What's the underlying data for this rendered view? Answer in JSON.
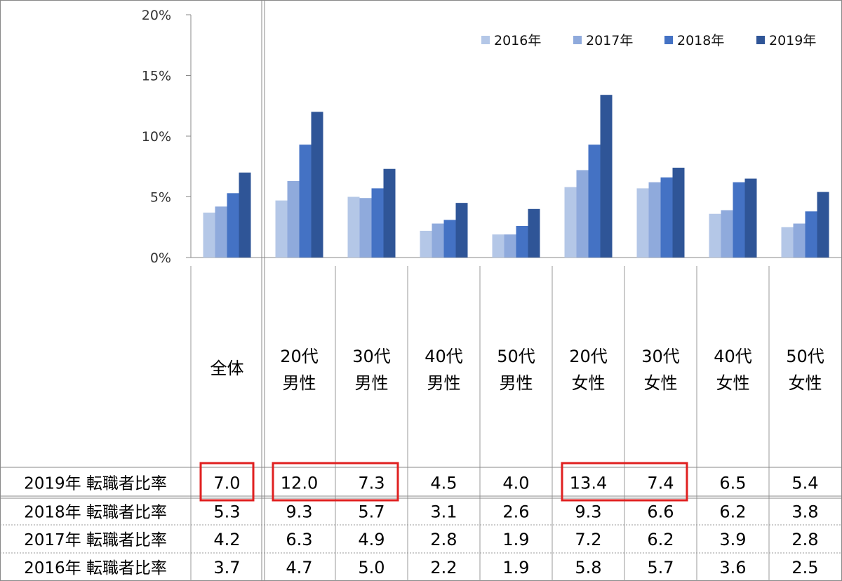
{
  "chart_data": {
    "type": "bar",
    "ylim": [
      0,
      20
    ],
    "y_ticks": [
      "0%",
      "5%",
      "10%",
      "15%",
      "20%"
    ],
    "grid": false,
    "legend_position": "top-right",
    "categories": [
      [
        "全体"
      ],
      [
        "20代",
        "男性"
      ],
      [
        "30代",
        "男性"
      ],
      [
        "40代",
        "男性"
      ],
      [
        "50代",
        "男性"
      ],
      [
        "20代",
        "女性"
      ],
      [
        "30代",
        "女性"
      ],
      [
        "40代",
        "女性"
      ],
      [
        "50代",
        "女性"
      ]
    ],
    "series": [
      {
        "name": "2016年",
        "color": "#b4c7e7",
        "values": [
          3.7,
          4.7,
          5.0,
          2.2,
          1.9,
          5.8,
          5.7,
          3.6,
          2.5
        ]
      },
      {
        "name": "2017年",
        "color": "#8faadc",
        "values": [
          4.2,
          6.3,
          4.9,
          2.8,
          1.9,
          7.2,
          6.2,
          3.9,
          2.8
        ]
      },
      {
        "name": "2018年",
        "color": "#4472c4",
        "values": [
          5.3,
          9.3,
          5.7,
          3.1,
          2.6,
          9.3,
          6.6,
          6.2,
          3.8
        ]
      },
      {
        "name": "2019年",
        "color": "#2f5597",
        "values": [
          7.0,
          12.0,
          7.3,
          4.5,
          4.0,
          13.4,
          7.4,
          6.5,
          5.4
        ]
      }
    ],
    "table": {
      "rows": [
        {
          "label": "2019年 転職者比率",
          "values": [
            "7.0",
            "12.0",
            "7.3",
            "4.5",
            "4.0",
            "13.4",
            "7.4",
            "6.5",
            "5.4"
          ]
        },
        {
          "label": "2018年 転職者比率",
          "values": [
            "5.3",
            "9.3",
            "5.7",
            "3.1",
            "2.6",
            "9.3",
            "6.6",
            "6.2",
            "3.8"
          ]
        },
        {
          "label": "2017年 転職者比率",
          "values": [
            "4.2",
            "6.3",
            "4.9",
            "2.8",
            "1.9",
            "7.2",
            "6.2",
            "3.9",
            "2.8"
          ]
        },
        {
          "label": "2016年 転職者比率",
          "values": [
            "3.7",
            "4.7",
            "5.0",
            "2.2",
            "1.9",
            "5.8",
            "5.7",
            "3.6",
            "2.5"
          ]
        }
      ],
      "highlights": [
        {
          "row": 0,
          "from": 0,
          "to": 0
        },
        {
          "row": 0,
          "from": 1,
          "to": 2
        },
        {
          "row": 0,
          "from": 5,
          "to": 6
        }
      ],
      "highlight_color": "#e02020"
    }
  }
}
